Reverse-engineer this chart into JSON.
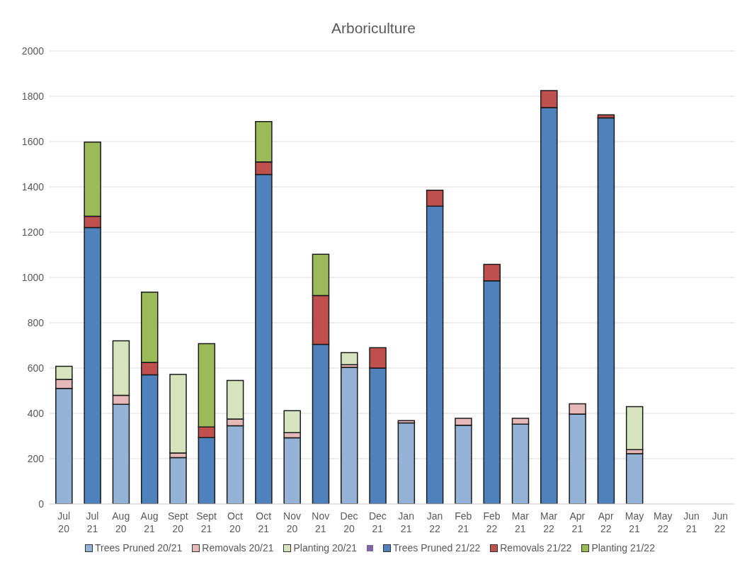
{
  "chart_data": {
    "type": "bar",
    "title": "Arboriculture",
    "stacked": true,
    "grid": "y",
    "legend": "bottom",
    "categories": [
      "Jul 20",
      "Jul 21",
      "Aug 20",
      "Aug 21",
      "Sept 20",
      "Sept 21",
      "Oct 20",
      "Oct 21",
      "Nov 20",
      "Nov 21",
      "Dec 20",
      "Dec 21",
      "Jan 21",
      "Jan 22",
      "Feb 21",
      "Feb 22",
      "Mar 21",
      "Mar 22",
      "Apr 21",
      "Apr 22",
      "May 21",
      "May 22",
      "Jun 21",
      "Jun 22"
    ],
    "ylim": [
      0,
      2000
    ],
    "yticks": [
      0,
      200,
      400,
      600,
      800,
      1000,
      1200,
      1400,
      1600,
      1800,
      2000
    ],
    "series": [
      {
        "name": "Trees Pruned 20/21",
        "color": "#95b3d7",
        "values": [
          510,
          null,
          440,
          null,
          205,
          null,
          345,
          null,
          292,
          null,
          603,
          null,
          358,
          null,
          348,
          null,
          352,
          null,
          397,
          null,
          222,
          null,
          null,
          null
        ]
      },
      {
        "name": "Removals 20/21",
        "color": "#e6b9b8",
        "values": [
          40,
          null,
          40,
          null,
          20,
          null,
          30,
          null,
          23,
          null,
          12,
          null,
          10,
          null,
          30,
          null,
          26,
          null,
          45,
          null,
          18,
          null,
          null,
          null
        ]
      },
      {
        "name": "Planting 20/21",
        "color": "#d7e4bd",
        "values": [
          58,
          null,
          240,
          null,
          347,
          null,
          170,
          null,
          97,
          null,
          53,
          null,
          null,
          null,
          null,
          null,
          null,
          null,
          null,
          null,
          190,
          null,
          null,
          null
        ]
      },
      {
        "color": "#8064a2",
        "values": [
          null,
          null,
          null,
          null,
          null,
          null,
          null,
          null,
          null,
          null,
          null,
          null,
          null,
          null,
          null,
          null,
          null,
          null,
          null,
          null,
          null,
          null,
          null,
          null
        ]
      },
      {
        "name": "Trees Pruned 21/22",
        "color": "#4f81bd",
        "values": [
          null,
          1220,
          null,
          570,
          null,
          293,
          null,
          1455,
          null,
          705,
          null,
          600,
          null,
          1315,
          null,
          985,
          null,
          1750,
          null,
          1705,
          null,
          null,
          null,
          null
        ]
      },
      {
        "name": "Removals 21/22",
        "color": "#c0504d",
        "values": [
          null,
          50,
          null,
          55,
          null,
          47,
          null,
          55,
          null,
          215,
          null,
          90,
          null,
          70,
          null,
          73,
          null,
          75,
          null,
          13,
          null,
          null,
          null,
          null
        ]
      },
      {
        "name": "Planting 21/22",
        "color": "#9bbb59",
        "values": [
          null,
          328,
          null,
          310,
          null,
          368,
          null,
          178,
          null,
          182,
          null,
          null,
          null,
          null,
          null,
          null,
          null,
          null,
          null,
          null,
          null,
          null,
          null,
          null
        ]
      }
    ]
  }
}
